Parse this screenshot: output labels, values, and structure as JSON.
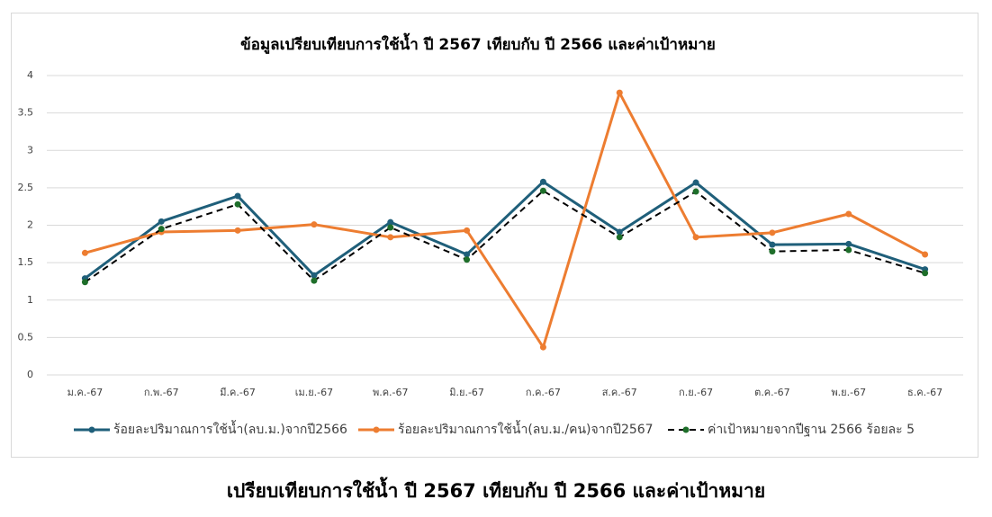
{
  "chart_data": {
    "type": "line",
    "title": "ข้อมูลเปรียบเทียบการใช้น้ำ ปี 2567 เทียบกับ ปี 2566 และค่าเป้าหมาย",
    "categories": [
      "ม.ค.-67",
      "ก.พ.-67",
      "มี.ค.-67",
      "เม.ย.-67",
      "พ.ค.-67",
      "มิ.ย.-67",
      "ก.ค.-67",
      "ส.ค.-67",
      "ก.ย.-67",
      "ต.ค.-67",
      "พ.ย.-67",
      "ธ.ค.-67"
    ],
    "series": [
      {
        "name": "ร้อยละปริมาณการใช้น้ำ(ลบ.ม.)จากปี2566",
        "color": "#1f5f7a",
        "marker_color": "#1f5f7a",
        "dashed": false,
        "values": [
          1.29,
          2.05,
          2.39,
          1.33,
          2.04,
          1.61,
          2.58,
          1.91,
          2.57,
          1.74,
          1.75,
          1.41
        ]
      },
      {
        "name": "ร้อยละปริมาณการใช้น้ำ(ลบ.ม./คน)จากปี2567",
        "color": "#ed7d31",
        "marker_color": "#ed7d31",
        "dashed": false,
        "values": [
          1.63,
          1.91,
          1.93,
          2.01,
          1.84,
          1.93,
          0.37,
          3.77,
          1.84,
          1.9,
          2.15,
          1.61
        ]
      },
      {
        "name": "ค่าเป้าหมายจากปีฐาน 2566 ร้อยละ 5",
        "color": "#000000",
        "marker_color": "#1e6e2a",
        "dashed": true,
        "values": [
          1.24,
          1.95,
          2.28,
          1.26,
          1.97,
          1.54,
          2.46,
          1.84,
          2.45,
          1.65,
          1.67,
          1.36
        ]
      }
    ],
    "ylim": [
      0,
      4
    ],
    "yticks": [
      0,
      0.5,
      1,
      1.5,
      2,
      2.5,
      3,
      3.5,
      4
    ],
    "grid": true,
    "legend": "bottom"
  },
  "caption": "เปรียบเทียบการใช้น้ำ ปี 2567 เทียบกับ ปี 2566 และค่าเป้าหมาย"
}
